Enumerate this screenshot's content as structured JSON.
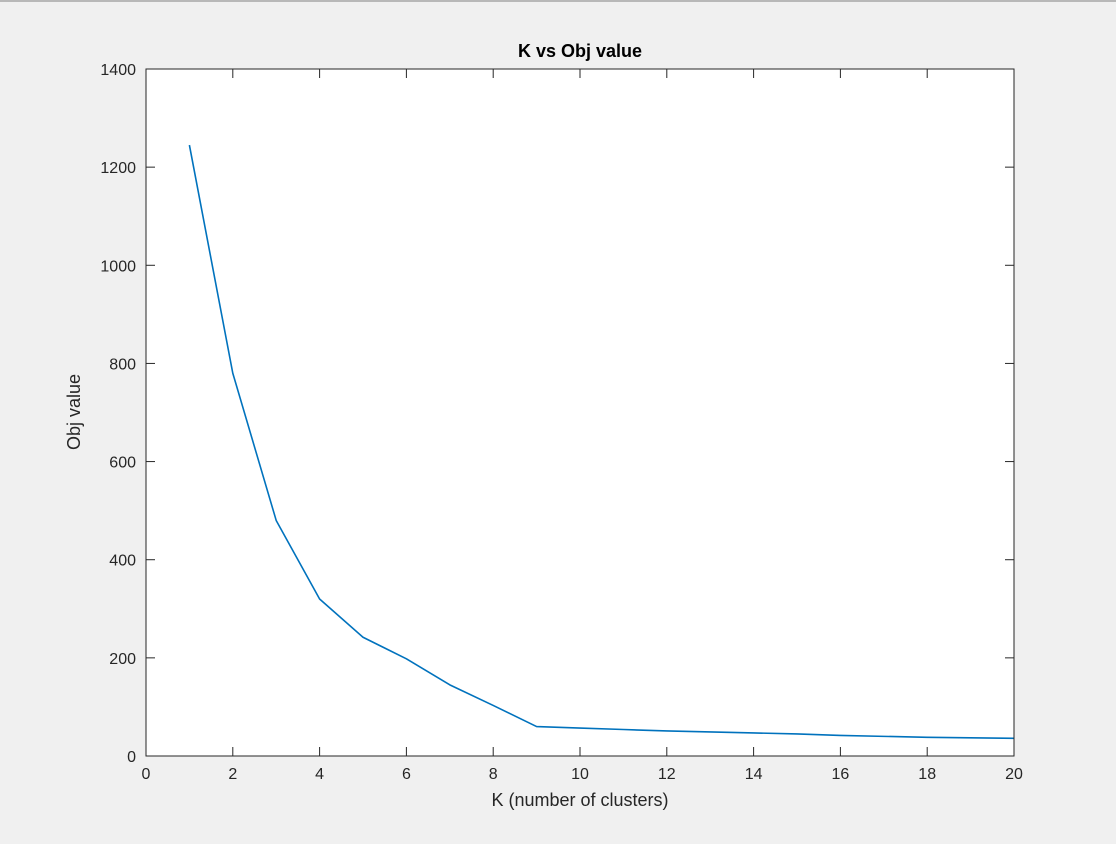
{
  "chart_data": {
    "type": "line",
    "title": "K vs Obj value",
    "xlabel": "K (number of clusters)",
    "ylabel": "Obj value",
    "xlim": [
      0,
      20
    ],
    "ylim": [
      0,
      1400
    ],
    "xticks": [
      0,
      2,
      4,
      6,
      8,
      10,
      12,
      14,
      16,
      18,
      20
    ],
    "yticks": [
      0,
      200,
      400,
      600,
      800,
      1000,
      1200,
      1400
    ],
    "grid": false,
    "line_color": "#0072bd",
    "series": [
      {
        "x": [
          1,
          2,
          3,
          4,
          5,
          6,
          7,
          8,
          9,
          10,
          11,
          12,
          13,
          14,
          15,
          16,
          17,
          18,
          19,
          20
        ],
        "y": [
          1245,
          780,
          480,
          320,
          242,
          198,
          145,
          103,
          60,
          57,
          54,
          51,
          49,
          47,
          45,
          42,
          40,
          38,
          37,
          36
        ]
      }
    ]
  }
}
